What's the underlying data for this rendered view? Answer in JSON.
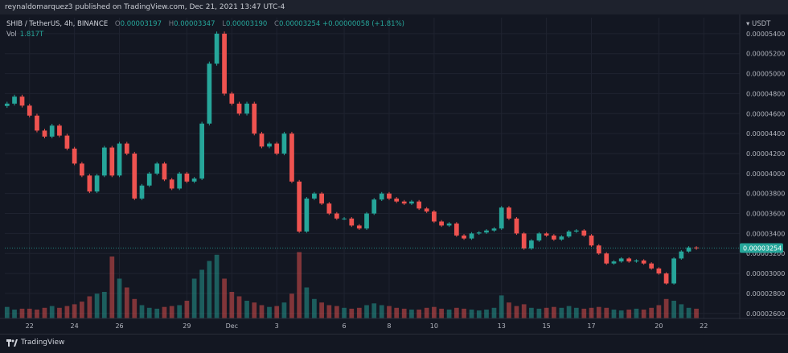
{
  "header": {
    "published_line": "reynaldomarquez3 published on TradingView.com, Dec 21, 2021 13:47 UTC-4"
  },
  "legend": {
    "symbol": "SHIB / TetherUS, 4h, BINANCE",
    "o_label": "O",
    "o_value": "0.00003197",
    "h_label": "H",
    "h_value": "0.00003347",
    "l_label": "L",
    "l_value": "0.00003190",
    "c_label": "C",
    "c_value": "0.00003254",
    "change": "+0.00000058 (+1.81%)",
    "vol_label": "Vol",
    "vol_value": "1.817T"
  },
  "price_axis": {
    "unit": "USDT",
    "currency_icon": "dropdown-caret-icon"
  },
  "footer": {
    "brand": "TradingView",
    "brand_icon": "tradingview-logo-icon"
  },
  "colors": {
    "up": "#26a69a",
    "down": "#ef5350",
    "background": "#131722",
    "grid": "#1f2330"
  },
  "chart_data": {
    "type": "candlestick",
    "interval": "4h",
    "y_ticks": [
      2.6e-05,
      2.8e-05,
      3e-05,
      3.2e-05,
      3.4e-05,
      3.6e-05,
      3.8e-05,
      4e-05,
      4.2e-05,
      4.4e-05,
      4.6e-05,
      4.8e-05,
      5e-05,
      5.2e-05,
      5.4e-05
    ],
    "y_tick_labels": [
      "0.00002600",
      "0.00002800",
      "0.00003000",
      "0.00003200",
      "0.00003400",
      "0.00003600",
      "0.00003800",
      "0.00004000",
      "0.00004200",
      "0.00004400",
      "0.00004600",
      "0.00004800",
      "0.00005000",
      "0.00005200",
      "0.00005400"
    ],
    "ylim": [
      2.55e-05,
      5.56e-05
    ],
    "x_ticks": [
      {
        "label": "22",
        "day": 22
      },
      {
        "label": "24",
        "day": 24
      },
      {
        "label": "26",
        "day": 26
      },
      {
        "label": "29",
        "day": 29
      },
      {
        "label": "Dec",
        "day": 31
      },
      {
        "label": "3",
        "day": 33
      },
      {
        "label": "6",
        "day": 36
      },
      {
        "label": "8",
        "day": 38
      },
      {
        "label": "10",
        "day": 40
      },
      {
        "label": "13",
        "day": 43
      },
      {
        "label": "15",
        "day": 45
      },
      {
        "label": "17",
        "day": 47
      },
      {
        "label": "20",
        "day": 50
      },
      {
        "label": "22",
        "day": 52
      }
    ],
    "xlim": [
      20.9,
      53.6
    ],
    "last_price": 3.254e-05,
    "last_price_label": "0.00003254",
    "series_price": [
      [
        21.0,
        4.7e-05
      ],
      [
        21.33,
        4.77e-05
      ],
      [
        21.67,
        4.68e-05
      ],
      [
        22.0,
        4.58e-05
      ],
      [
        22.33,
        4.43e-05
      ],
      [
        22.67,
        4.37e-05
      ],
      [
        23.0,
        4.48e-05
      ],
      [
        23.33,
        4.38e-05
      ],
      [
        23.67,
        4.25e-05
      ],
      [
        24.0,
        4.1e-05
      ],
      [
        24.33,
        3.98e-05
      ],
      [
        24.67,
        3.82e-05
      ],
      [
        25.0,
        3.98e-05
      ],
      [
        25.33,
        4.26e-05
      ],
      [
        25.67,
        3.98e-05
      ],
      [
        26.0,
        4.3e-05
      ],
      [
        26.33,
        4.2e-05
      ],
      [
        26.67,
        3.75e-05
      ],
      [
        27.0,
        3.88e-05
      ],
      [
        27.33,
        4e-05
      ],
      [
        27.67,
        4.1e-05
      ],
      [
        28.0,
        3.94e-05
      ],
      [
        28.33,
        3.85e-05
      ],
      [
        28.67,
        4e-05
      ],
      [
        29.0,
        3.92e-05
      ],
      [
        29.33,
        3.95e-05
      ],
      [
        29.67,
        4.5e-05
      ],
      [
        30.0,
        5.1e-05
      ],
      [
        30.33,
        5.4e-05
      ],
      [
        30.67,
        4.8e-05
      ],
      [
        31.0,
        4.7e-05
      ],
      [
        31.33,
        4.6e-05
      ],
      [
        31.67,
        4.7e-05
      ],
      [
        32.0,
        4.4e-05
      ],
      [
        32.33,
        4.27e-05
      ],
      [
        32.67,
        4.3e-05
      ],
      [
        33.0,
        4.2e-05
      ],
      [
        33.33,
        4.4e-05
      ],
      [
        33.67,
        3.92e-05
      ],
      [
        34.0,
        3.42e-05
      ],
      [
        34.33,
        3.75e-05
      ],
      [
        34.67,
        3.8e-05
      ],
      [
        35.0,
        3.7e-05
      ],
      [
        35.33,
        3.6e-05
      ],
      [
        35.67,
        3.55e-05
      ],
      [
        36.0,
        3.55e-05
      ],
      [
        36.33,
        3.48e-05
      ],
      [
        36.67,
        3.45e-05
      ],
      [
        37.0,
        3.6e-05
      ],
      [
        37.33,
        3.74e-05
      ],
      [
        37.67,
        3.8e-05
      ],
      [
        38.0,
        3.75e-05
      ],
      [
        38.33,
        3.72e-05
      ],
      [
        38.67,
        3.7e-05
      ],
      [
        39.0,
        3.72e-05
      ],
      [
        39.33,
        3.65e-05
      ],
      [
        39.67,
        3.62e-05
      ],
      [
        40.0,
        3.52e-05
      ],
      [
        40.33,
        3.48e-05
      ],
      [
        40.67,
        3.5e-05
      ],
      [
        41.0,
        3.38e-05
      ],
      [
        41.33,
        3.35e-05
      ],
      [
        41.67,
        3.4e-05
      ],
      [
        42.0,
        3.41e-05
      ],
      [
        42.33,
        3.43e-05
      ],
      [
        42.67,
        3.45e-05
      ],
      [
        43.0,
        3.66e-05
      ],
      [
        43.33,
        3.55e-05
      ],
      [
        43.67,
        3.4e-05
      ],
      [
        44.0,
        3.25e-05
      ],
      [
        44.33,
        3.33e-05
      ],
      [
        44.67,
        3.4e-05
      ],
      [
        45.0,
        3.38e-05
      ],
      [
        45.33,
        3.34e-05
      ],
      [
        45.67,
        3.37e-05
      ],
      [
        46.0,
        3.42e-05
      ],
      [
        46.33,
        3.43e-05
      ],
      [
        46.67,
        3.38e-05
      ],
      [
        47.0,
        3.28e-05
      ],
      [
        47.33,
        3.2e-05
      ],
      [
        47.67,
        3.1e-05
      ],
      [
        48.0,
        3.12e-05
      ],
      [
        48.33,
        3.15e-05
      ],
      [
        48.67,
        3.12e-05
      ],
      [
        49.0,
        3.13e-05
      ],
      [
        49.33,
        3.1e-05
      ],
      [
        49.67,
        3.05e-05
      ],
      [
        50.0,
        3e-05
      ],
      [
        50.33,
        2.9e-05
      ],
      [
        50.67,
        3.15e-05
      ],
      [
        51.0,
        3.22e-05
      ],
      [
        51.33,
        3.26e-05
      ],
      [
        51.67,
        3.25e-05
      ]
    ],
    "series_volume": [
      [
        21.0,
        0.13
      ],
      [
        21.33,
        0.1
      ],
      [
        21.67,
        0.11
      ],
      [
        22.0,
        0.11
      ],
      [
        22.33,
        0.1
      ],
      [
        22.67,
        0.12
      ],
      [
        23.0,
        0.14
      ],
      [
        23.33,
        0.12
      ],
      [
        23.67,
        0.14
      ],
      [
        24.0,
        0.16
      ],
      [
        24.33,
        0.19
      ],
      [
        24.67,
        0.25
      ],
      [
        25.0,
        0.28
      ],
      [
        25.33,
        0.3
      ],
      [
        25.67,
        0.7
      ],
      [
        26.0,
        0.45
      ],
      [
        26.33,
        0.35
      ],
      [
        26.67,
        0.22
      ],
      [
        27.0,
        0.15
      ],
      [
        27.33,
        0.12
      ],
      [
        27.67,
        0.11
      ],
      [
        28.0,
        0.13
      ],
      [
        28.33,
        0.14
      ],
      [
        28.67,
        0.15
      ],
      [
        29.0,
        0.2
      ],
      [
        29.33,
        0.45
      ],
      [
        29.67,
        0.55
      ],
      [
        30.0,
        0.65
      ],
      [
        30.33,
        0.72
      ],
      [
        30.67,
        0.45
      ],
      [
        31.0,
        0.3
      ],
      [
        31.33,
        0.25
      ],
      [
        31.67,
        0.2
      ],
      [
        32.0,
        0.18
      ],
      [
        32.33,
        0.15
      ],
      [
        32.67,
        0.13
      ],
      [
        33.0,
        0.14
      ],
      [
        33.33,
        0.18
      ],
      [
        33.67,
        0.28
      ],
      [
        34.0,
        0.75
      ],
      [
        34.33,
        0.35
      ],
      [
        34.67,
        0.22
      ],
      [
        35.0,
        0.18
      ],
      [
        35.33,
        0.15
      ],
      [
        35.67,
        0.14
      ],
      [
        36.0,
        0.12
      ],
      [
        36.33,
        0.11
      ],
      [
        36.67,
        0.12
      ],
      [
        37.0,
        0.15
      ],
      [
        37.33,
        0.17
      ],
      [
        37.67,
        0.15
      ],
      [
        38.0,
        0.14
      ],
      [
        38.33,
        0.12
      ],
      [
        38.67,
        0.11
      ],
      [
        39.0,
        0.1
      ],
      [
        39.33,
        0.1
      ],
      [
        39.67,
        0.12
      ],
      [
        40.0,
        0.13
      ],
      [
        40.33,
        0.11
      ],
      [
        40.67,
        0.1
      ],
      [
        41.0,
        0.12
      ],
      [
        41.33,
        0.11
      ],
      [
        41.67,
        0.1
      ],
      [
        42.0,
        0.09
      ],
      [
        42.33,
        0.1
      ],
      [
        42.67,
        0.12
      ],
      [
        43.0,
        0.26
      ],
      [
        43.33,
        0.18
      ],
      [
        43.67,
        0.14
      ],
      [
        44.0,
        0.16
      ],
      [
        44.33,
        0.12
      ],
      [
        44.67,
        0.11
      ],
      [
        45.0,
        0.12
      ],
      [
        45.33,
        0.13
      ],
      [
        45.67,
        0.12
      ],
      [
        46.0,
        0.14
      ],
      [
        46.33,
        0.12
      ],
      [
        46.67,
        0.11
      ],
      [
        47.0,
        0.12
      ],
      [
        47.33,
        0.13
      ],
      [
        47.67,
        0.12
      ],
      [
        48.0,
        0.1
      ],
      [
        48.33,
        0.09
      ],
      [
        48.67,
        0.1
      ],
      [
        49.0,
        0.11
      ],
      [
        49.33,
        0.1
      ],
      [
        49.67,
        0.12
      ],
      [
        50.0,
        0.15
      ],
      [
        50.33,
        0.22
      ],
      [
        50.67,
        0.2
      ],
      [
        51.0,
        0.16
      ],
      [
        51.33,
        0.12
      ],
      [
        51.67,
        0.11
      ]
    ]
  }
}
